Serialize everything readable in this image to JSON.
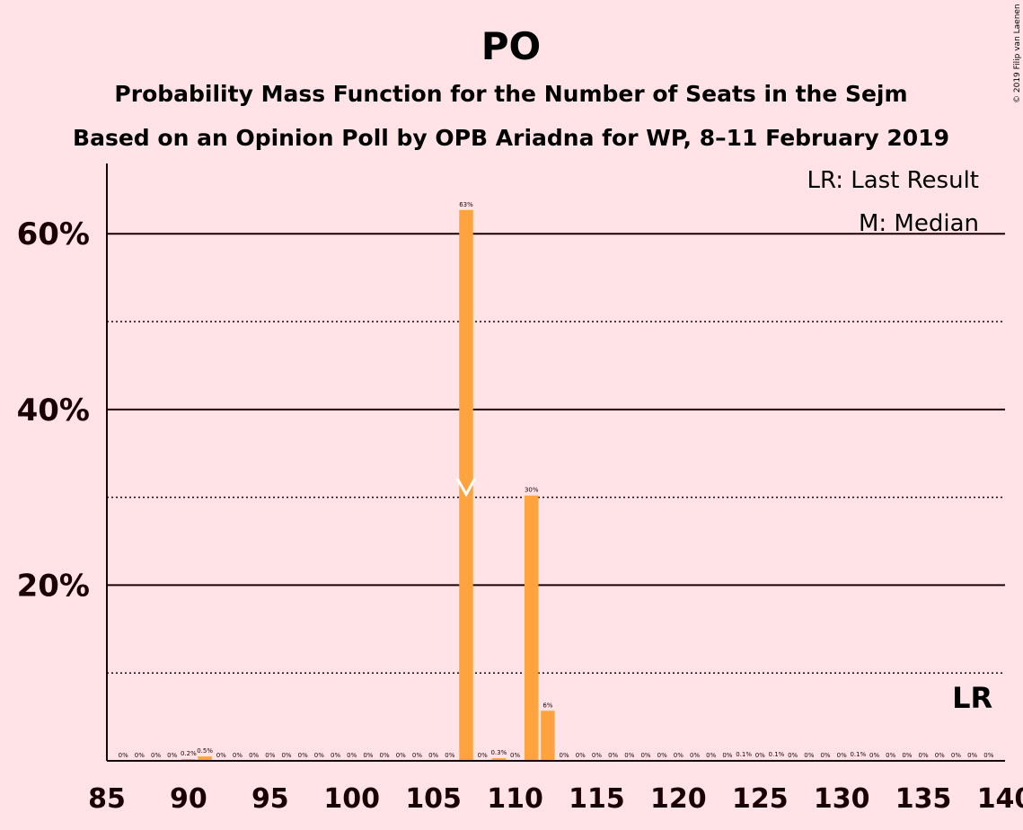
{
  "chart_data": {
    "type": "bar",
    "title": "PO",
    "subtitle": "Probability Mass Function for the Number of Seats in the Sejm",
    "subtitle2": "Based on an Opinion Poll by OPB Ariadna for WP, 8–11 February 2019",
    "copyright": "© 2019 Filip van Laenen",
    "x": [
      86,
      87,
      88,
      89,
      90,
      91,
      92,
      93,
      94,
      95,
      96,
      97,
      98,
      99,
      100,
      101,
      102,
      103,
      104,
      105,
      106,
      107,
      108,
      109,
      110,
      111,
      112,
      113,
      114,
      115,
      116,
      117,
      118,
      119,
      120,
      121,
      122,
      123,
      124,
      125,
      126,
      127,
      128,
      129,
      130,
      131,
      132,
      133,
      134,
      135,
      136,
      137,
      138,
      139
    ],
    "values": [
      0,
      0,
      0,
      0,
      0.2,
      0.5,
      0,
      0,
      0,
      0,
      0,
      0,
      0,
      0,
      0,
      0,
      0,
      0,
      0,
      0,
      0,
      62.7,
      0,
      0.3,
      0,
      30.2,
      5.7,
      0,
      0,
      0,
      0,
      0,
      0,
      0,
      0,
      0,
      0,
      0,
      0.1,
      0,
      0.1,
      0,
      0,
      0,
      0,
      0.1,
      0,
      0,
      0,
      0,
      0,
      0,
      0,
      0
    ],
    "data_labels": [
      "0%",
      "0%",
      "0%",
      "0%",
      "0.2%",
      "0.5%",
      "0%",
      "0%",
      "0%",
      "0%",
      "0%",
      "0%",
      "0%",
      "0%",
      "0%",
      "0%",
      "0%",
      "0%",
      "0%",
      "0%",
      "0%",
      "63%",
      "0%",
      "0.3%",
      "0%",
      "30%",
      "6%",
      "0%",
      "0%",
      "0%",
      "0%",
      "0%",
      "0%",
      "0%",
      "0%",
      "0%",
      "0%",
      "0%",
      "0.1%",
      "0%",
      "0.1%",
      "0%",
      "0%",
      "0%",
      "0%",
      "0.1%",
      "0%",
      "0%",
      "0%",
      "0%",
      "0%",
      "0%",
      "0%",
      "0%"
    ],
    "xlim": [
      85,
      140
    ],
    "ylim": [
      0,
      68
    ],
    "xticks": [
      85,
      90,
      95,
      100,
      105,
      110,
      115,
      120,
      125,
      130,
      135,
      140
    ],
    "xtick_labels": [
      "85",
      "90",
      "95",
      "100",
      "105",
      "110",
      "115",
      "120",
      "125",
      "130",
      "135",
      "140"
    ],
    "yticks_major": [
      20,
      40,
      60
    ],
    "ytick_labels": [
      "20%",
      "40%",
      "60%"
    ],
    "yticks_minor": [
      10,
      30,
      50
    ],
    "median": 107,
    "last_result": 138,
    "legend": {
      "last_result": "LR: Last Result",
      "median": "M: Median",
      "lr_marker": "LR",
      "placement": "top-right"
    },
    "colors": {
      "bar": "#FFA33F",
      "background": "#FFE3E7",
      "text": "#1a0005",
      "median_marker": "#FFFFFF"
    }
  }
}
